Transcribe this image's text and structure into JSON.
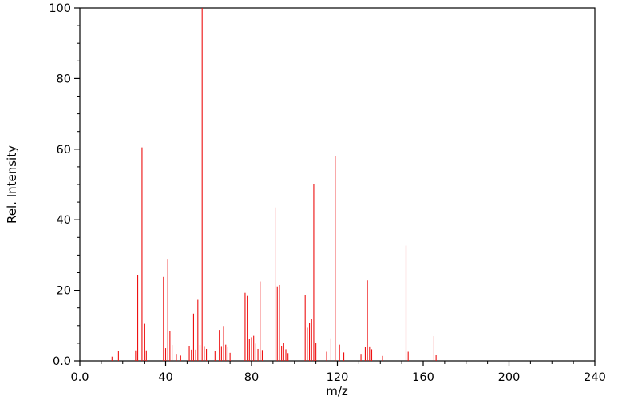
{
  "chart_data": {
    "type": "bar",
    "subtype": "mass-spectrum-stick-plot",
    "title": "",
    "xlabel": "m/z",
    "ylabel": "Rel. Intensity",
    "xlim": [
      0,
      240
    ],
    "ylim": [
      0,
      100
    ],
    "grid": false,
    "legend": "none",
    "stick_color": "#ee1111",
    "frame_color": "#000000",
    "x_ticks": [
      {
        "value": 0,
        "label": "0.0"
      },
      {
        "value": 40,
        "label": "40"
      },
      {
        "value": 80,
        "label": "80"
      },
      {
        "value": 120,
        "label": "120"
      },
      {
        "value": 160,
        "label": "160"
      },
      {
        "value": 200,
        "label": "200"
      },
      {
        "value": 240,
        "label": "240"
      }
    ],
    "y_ticks": [
      {
        "value": 0,
        "label": "0.0"
      },
      {
        "value": 20,
        "label": "20"
      },
      {
        "value": 40,
        "label": "40"
      },
      {
        "value": 60,
        "label": "60"
      },
      {
        "value": 80,
        "label": "80"
      },
      {
        "value": 100,
        "label": "100"
      }
    ],
    "x_minor_step": 10,
    "y_minor_step": 5,
    "peaks": [
      [
        15,
        1.2
      ],
      [
        18,
        2.8
      ],
      [
        26,
        3.0
      ],
      [
        27,
        24.3
      ],
      [
        29,
        60.5
      ],
      [
        30,
        10.5
      ],
      [
        31,
        3.0
      ],
      [
        39,
        23.8
      ],
      [
        40,
        3.6
      ],
      [
        41,
        28.7
      ],
      [
        42,
        8.6
      ],
      [
        43,
        4.5
      ],
      [
        45,
        2.0
      ],
      [
        47,
        1.5
      ],
      [
        51,
        4.3
      ],
      [
        52,
        3.2
      ],
      [
        53,
        13.4
      ],
      [
        54,
        3.2
      ],
      [
        55,
        17.3
      ],
      [
        56,
        4.5
      ],
      [
        57,
        100.0
      ],
      [
        58,
        4.2
      ],
      [
        59,
        3.4
      ],
      [
        63,
        2.8
      ],
      [
        65,
        8.8
      ],
      [
        66,
        4.2
      ],
      [
        67,
        9.9
      ],
      [
        68,
        4.6
      ],
      [
        69,
        4.0
      ],
      [
        70,
        2.3
      ],
      [
        77,
        19.3
      ],
      [
        78,
        18.4
      ],
      [
        79,
        6.3
      ],
      [
        80,
        6.7
      ],
      [
        81,
        7.1
      ],
      [
        82,
        4.9
      ],
      [
        83,
        3.4
      ],
      [
        84,
        22.5
      ],
      [
        85,
        3.1
      ],
      [
        91,
        43.5
      ],
      [
        92,
        21.1
      ],
      [
        93,
        21.5
      ],
      [
        94,
        4.3
      ],
      [
        95,
        5.1
      ],
      [
        96,
        3.3
      ],
      [
        97,
        2.2
      ],
      [
        105,
        18.7
      ],
      [
        106,
        9.4
      ],
      [
        107,
        10.7
      ],
      [
        108,
        11.9
      ],
      [
        109,
        50.0
      ],
      [
        110,
        5.2
      ],
      [
        115,
        2.6
      ],
      [
        117,
        6.4
      ],
      [
        119,
        58.0
      ],
      [
        121,
        4.6
      ],
      [
        123,
        2.4
      ],
      [
        131,
        2.0
      ],
      [
        133,
        3.9
      ],
      [
        134,
        22.8
      ],
      [
        135,
        4.1
      ],
      [
        136,
        3.3
      ],
      [
        141,
        1.4
      ],
      [
        152,
        32.7
      ],
      [
        153,
        2.6
      ],
      [
        165,
        7.0
      ],
      [
        166,
        1.6
      ]
    ]
  }
}
